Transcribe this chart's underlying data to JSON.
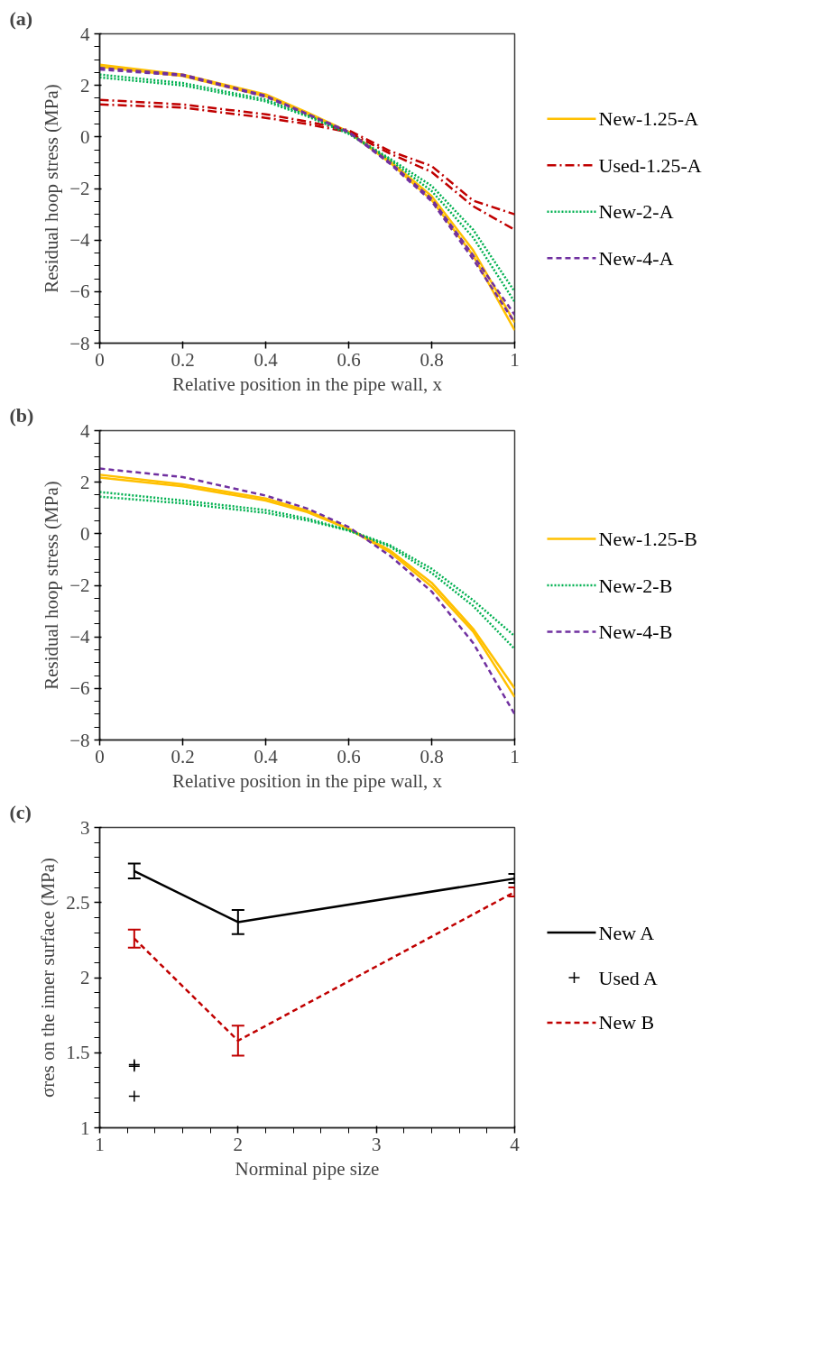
{
  "chart_data": [
    {
      "type": "line",
      "title": "(a)",
      "xlabel": "Relative position in the pipe wall, x",
      "ylabel": "Residual hoop stress (MPa)",
      "x": [
        0,
        0.2,
        0.4,
        0.5,
        0.6,
        0.7,
        0.8,
        0.9,
        1
      ],
      "xlim": [
        0,
        1
      ],
      "xticks": [
        0,
        0.2,
        0.4,
        0.6,
        0.8,
        1
      ],
      "ylim": [
        -8,
        4
      ],
      "yticks": [
        -8,
        -6,
        -4,
        -2,
        0,
        2,
        4
      ],
      "grid": false,
      "legend": "right",
      "series": [
        {
          "name": "New-1.25-A",
          "color": "#ffc000",
          "line_style": "solid",
          "values": [
            2.8,
            2.42,
            1.65,
            0.95,
            0.2,
            -0.95,
            -2.3,
            -4.4,
            -7.2
          ]
        },
        {
          "color": "#ffc000",
          "line_style": "solid",
          "values": [
            2.72,
            2.36,
            1.58,
            0.9,
            0.18,
            -1.0,
            -2.45,
            -4.6,
            -7.5
          ]
        },
        {
          "name": "Used-1.25-A",
          "color": "#c00000",
          "line_style": "dashdot",
          "values": [
            1.44,
            1.26,
            0.88,
            0.6,
            0.26,
            -0.55,
            -1.13,
            -2.47,
            -3.0
          ]
        },
        {
          "color": "#c00000",
          "line_style": "dashdot",
          "values": [
            1.26,
            1.14,
            0.74,
            0.5,
            0.18,
            -0.65,
            -1.36,
            -2.69,
            -3.6
          ]
        },
        {
          "name": "New-2-A",
          "color": "#00b050",
          "line_style": "dotted",
          "values": [
            2.42,
            2.09,
            1.45,
            0.85,
            0.15,
            -0.85,
            -1.9,
            -3.6,
            -6.0
          ]
        },
        {
          "color": "#00b050",
          "line_style": "dotted",
          "values": [
            2.31,
            2.0,
            1.38,
            0.8,
            0.12,
            -0.9,
            -2.1,
            -3.9,
            -6.4
          ]
        },
        {
          "name": "New-4-A",
          "color": "#7030a0",
          "line_style": "dashed",
          "values": [
            2.68,
            2.42,
            1.6,
            0.9,
            0.2,
            -1.0,
            -2.4,
            -4.6,
            -6.9
          ]
        },
        {
          "color": "#7030a0",
          "line_style": "dashed",
          "values": [
            2.62,
            2.38,
            1.56,
            0.88,
            0.18,
            -1.05,
            -2.5,
            -4.75,
            -7.2
          ]
        }
      ]
    },
    {
      "type": "line",
      "title": "(b)",
      "xlabel": "Relative position in the pipe wall, x",
      "ylabel": "Residual hoop stress (MPa)",
      "x": [
        0,
        0.2,
        0.4,
        0.5,
        0.6,
        0.7,
        0.8,
        0.9,
        1
      ],
      "xlim": [
        0,
        1
      ],
      "xticks": [
        0,
        0.2,
        0.4,
        0.6,
        0.8,
        1
      ],
      "ylim": [
        -8,
        4
      ],
      "yticks": [
        -8,
        -6,
        -4,
        -2,
        0,
        2,
        4
      ],
      "grid": false,
      "legend": "right",
      "series": [
        {
          "name": "New-1.25-B",
          "color": "#ffc000",
          "line_style": "solid",
          "values": [
            2.29,
            1.92,
            1.37,
            0.9,
            0.2,
            -0.65,
            -1.9,
            -3.69,
            -6.0
          ]
        },
        {
          "color": "#ffc000",
          "line_style": "solid",
          "values": [
            2.18,
            1.84,
            1.29,
            0.84,
            0.18,
            -0.72,
            -2.05,
            -3.8,
            -6.33
          ]
        },
        {
          "name": "New-2-B",
          "color": "#00b050",
          "line_style": "dotted",
          "values": [
            1.62,
            1.29,
            0.92,
            0.59,
            0.14,
            -0.45,
            -1.36,
            -2.58,
            -3.97
          ]
        },
        {
          "color": "#00b050",
          "line_style": "dotted",
          "values": [
            1.44,
            1.18,
            0.81,
            0.52,
            0.12,
            -0.5,
            -1.52,
            -2.8,
            -4.47
          ]
        },
        {
          "name": "New-4-B",
          "color": "#7030a0",
          "line_style": "dashed",
          "values": [
            2.53,
            2.2,
            1.48,
            0.98,
            0.26,
            -0.86,
            -2.24,
            -4.24,
            -7.0
          ]
        }
      ]
    },
    {
      "type": "line",
      "title": "(c)",
      "xlabel": "Norminal pipe size",
      "ylabel": "σres on the inner surface (MPa)",
      "xlim": [
        1,
        4
      ],
      "xticks": [
        1,
        2,
        3,
        4
      ],
      "ylim": [
        1,
        3
      ],
      "yticks": [
        1,
        1.5,
        2,
        2.5,
        3
      ],
      "grid": false,
      "legend": "right",
      "series": [
        {
          "name": "New A",
          "color": "#000000",
          "line_style": "solid",
          "x": [
            1.25,
            2,
            4
          ],
          "values": [
            2.71,
            2.37,
            2.66
          ],
          "errors": [
            0.05,
            0.08,
            0.03
          ]
        },
        {
          "name": "Used A",
          "type": "scatter",
          "marker": "cross",
          "color": "#000000",
          "x": [
            1.25,
            1.25,
            1.25
          ],
          "values": [
            1.42,
            1.41,
            1.21
          ]
        },
        {
          "name": "New B",
          "color": "#c00000",
          "line_style": "dashed",
          "x": [
            1.25,
            2,
            4
          ],
          "values": [
            2.26,
            1.58,
            2.57
          ],
          "errors": [
            0.06,
            0.1,
            0.03
          ]
        }
      ]
    }
  ]
}
